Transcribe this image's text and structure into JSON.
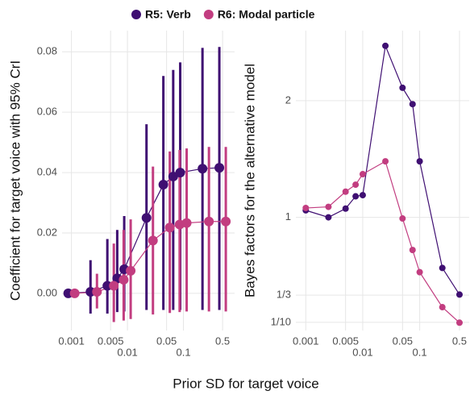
{
  "chart_data": [
    {
      "type": "line",
      "xlog": true,
      "grid": true,
      "ylabel": "Coefficient for target voice with 95% CrI",
      "xlabel": "Prior SD for target voice",
      "x": [
        0.001,
        0.0025,
        0.005,
        0.0075,
        0.01,
        0.025,
        0.05,
        0.075,
        0.1,
        0.25,
        0.5
      ],
      "xlim": [
        0.00068,
        0.82
      ],
      "xticks": [
        0.001,
        0.005,
        0.01,
        0.05,
        0.1,
        0.5
      ],
      "ylim": [
        -0.0123,
        0.087
      ],
      "yticks": [
        {
          "value": 0,
          "label": "0.00"
        },
        {
          "value": 0.02,
          "label": "0.02"
        },
        {
          "value": 0.04,
          "label": "0.04"
        },
        {
          "value": 0.06,
          "label": "0.06"
        },
        {
          "value": 0.08,
          "label": "0.08"
        }
      ],
      "series": [
        {
          "name": "R5: Verb",
          "color": "#3f0f72",
          "values": [
            0.0,
            0.0005,
            0.0025,
            0.005,
            0.008,
            0.025,
            0.036,
            0.0387,
            0.04,
            0.0413,
            0.0416
          ],
          "lower": [
            -0.0008,
            -0.0067,
            -0.0067,
            -0.0062,
            -0.006,
            -0.0055,
            -0.0055,
            -0.0055,
            -0.0055,
            -0.0055,
            -0.0055
          ],
          "upper": [
            0.0008,
            0.011,
            0.018,
            0.021,
            0.0256,
            0.056,
            0.072,
            0.074,
            0.0765,
            0.0813,
            0.0816
          ]
        },
        {
          "name": "R6: Modal particle",
          "color": "#c23d80",
          "values": [
            0.0,
            0.0005,
            0.0025,
            0.0045,
            0.0075,
            0.0175,
            0.0218,
            0.0228,
            0.0233,
            0.0238,
            0.0238
          ],
          "lower": [
            -0.0008,
            -0.005,
            -0.0095,
            -0.009,
            -0.0085,
            -0.007,
            -0.0065,
            -0.0062,
            -0.006,
            -0.006,
            -0.006
          ],
          "upper": [
            0.0008,
            0.0065,
            0.0165,
            0.021,
            0.0245,
            0.042,
            0.047,
            0.0475,
            0.048,
            0.0485,
            0.0485
          ]
        }
      ]
    },
    {
      "type": "line",
      "xlog": true,
      "grid": true,
      "ylabel": "Bayes factors for the alternative model",
      "x": [
        0.001,
        0.0025,
        0.005,
        0.0075,
        0.01,
        0.025,
        0.05,
        0.075,
        0.1,
        0.25,
        0.5
      ],
      "xlim": [
        0.00067,
        0.74
      ],
      "xticks": [
        0.001,
        0.005,
        0.01,
        0.05,
        0.1,
        0.5
      ],
      "ylim": [
        0.03,
        2.6
      ],
      "yticks": [
        {
          "value": 0.1,
          "label": "1/10"
        },
        {
          "value": 0.333,
          "label": "1/3"
        },
        1,
        2
      ],
      "series": [
        {
          "color": "#3f0f72",
          "values": [
            1.06,
            1.0,
            1.075,
            1.18,
            1.19,
            2.47,
            2.11,
            1.97,
            1.48,
            0.566,
            0.338
          ]
        },
        {
          "color": "#c23d80",
          "values": [
            1.08,
            1.09,
            1.22,
            1.28,
            1.37,
            1.48,
            0.99,
            0.72,
            0.53,
            0.23,
            0.097
          ]
        }
      ]
    }
  ]
}
